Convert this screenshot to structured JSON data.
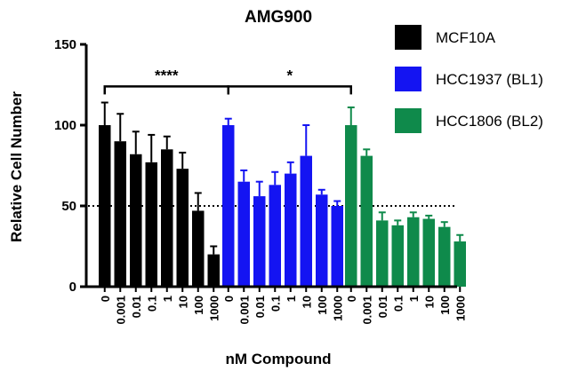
{
  "chart_data": {
    "type": "bar",
    "title": "AMG900",
    "xlabel": "nM Compound",
    "ylabel": "Relative Cell Number",
    "ylim": [
      0,
      150
    ],
    "yticks": [
      0,
      50,
      100,
      150
    ],
    "categories": [
      "0",
      "0.001",
      "0.01",
      "0.1",
      "1",
      "10",
      "100",
      "1000"
    ],
    "reference_line": 50,
    "legend_position": "top-right",
    "series": [
      {
        "name": "MCF10A",
        "color": "#000000",
        "values": [
          100,
          90,
          82,
          77,
          85,
          73,
          47,
          20
        ],
        "errors": [
          14,
          17,
          14,
          17,
          8,
          10,
          11,
          5
        ]
      },
      {
        "name": "HCC1937 (BL1)",
        "color": "#1414f2",
        "values": [
          100,
          65,
          56,
          63,
          70,
          81,
          57,
          50
        ],
        "errors": [
          4,
          7,
          9,
          8,
          7,
          19,
          3,
          3
        ]
      },
      {
        "name": "HCC1806 (BL2)",
        "color": "#0f8a4b",
        "values": [
          100,
          81,
          41,
          38,
          43,
          42,
          37,
          28
        ],
        "errors": [
          11,
          4,
          5,
          3,
          3,
          2,
          3,
          4
        ]
      }
    ],
    "significance": [
      {
        "label": "****",
        "from_series": 0,
        "to_series": 1,
        "y": 124
      },
      {
        "label": "*",
        "from_series": 1,
        "to_series": 2,
        "y": 124
      }
    ]
  }
}
